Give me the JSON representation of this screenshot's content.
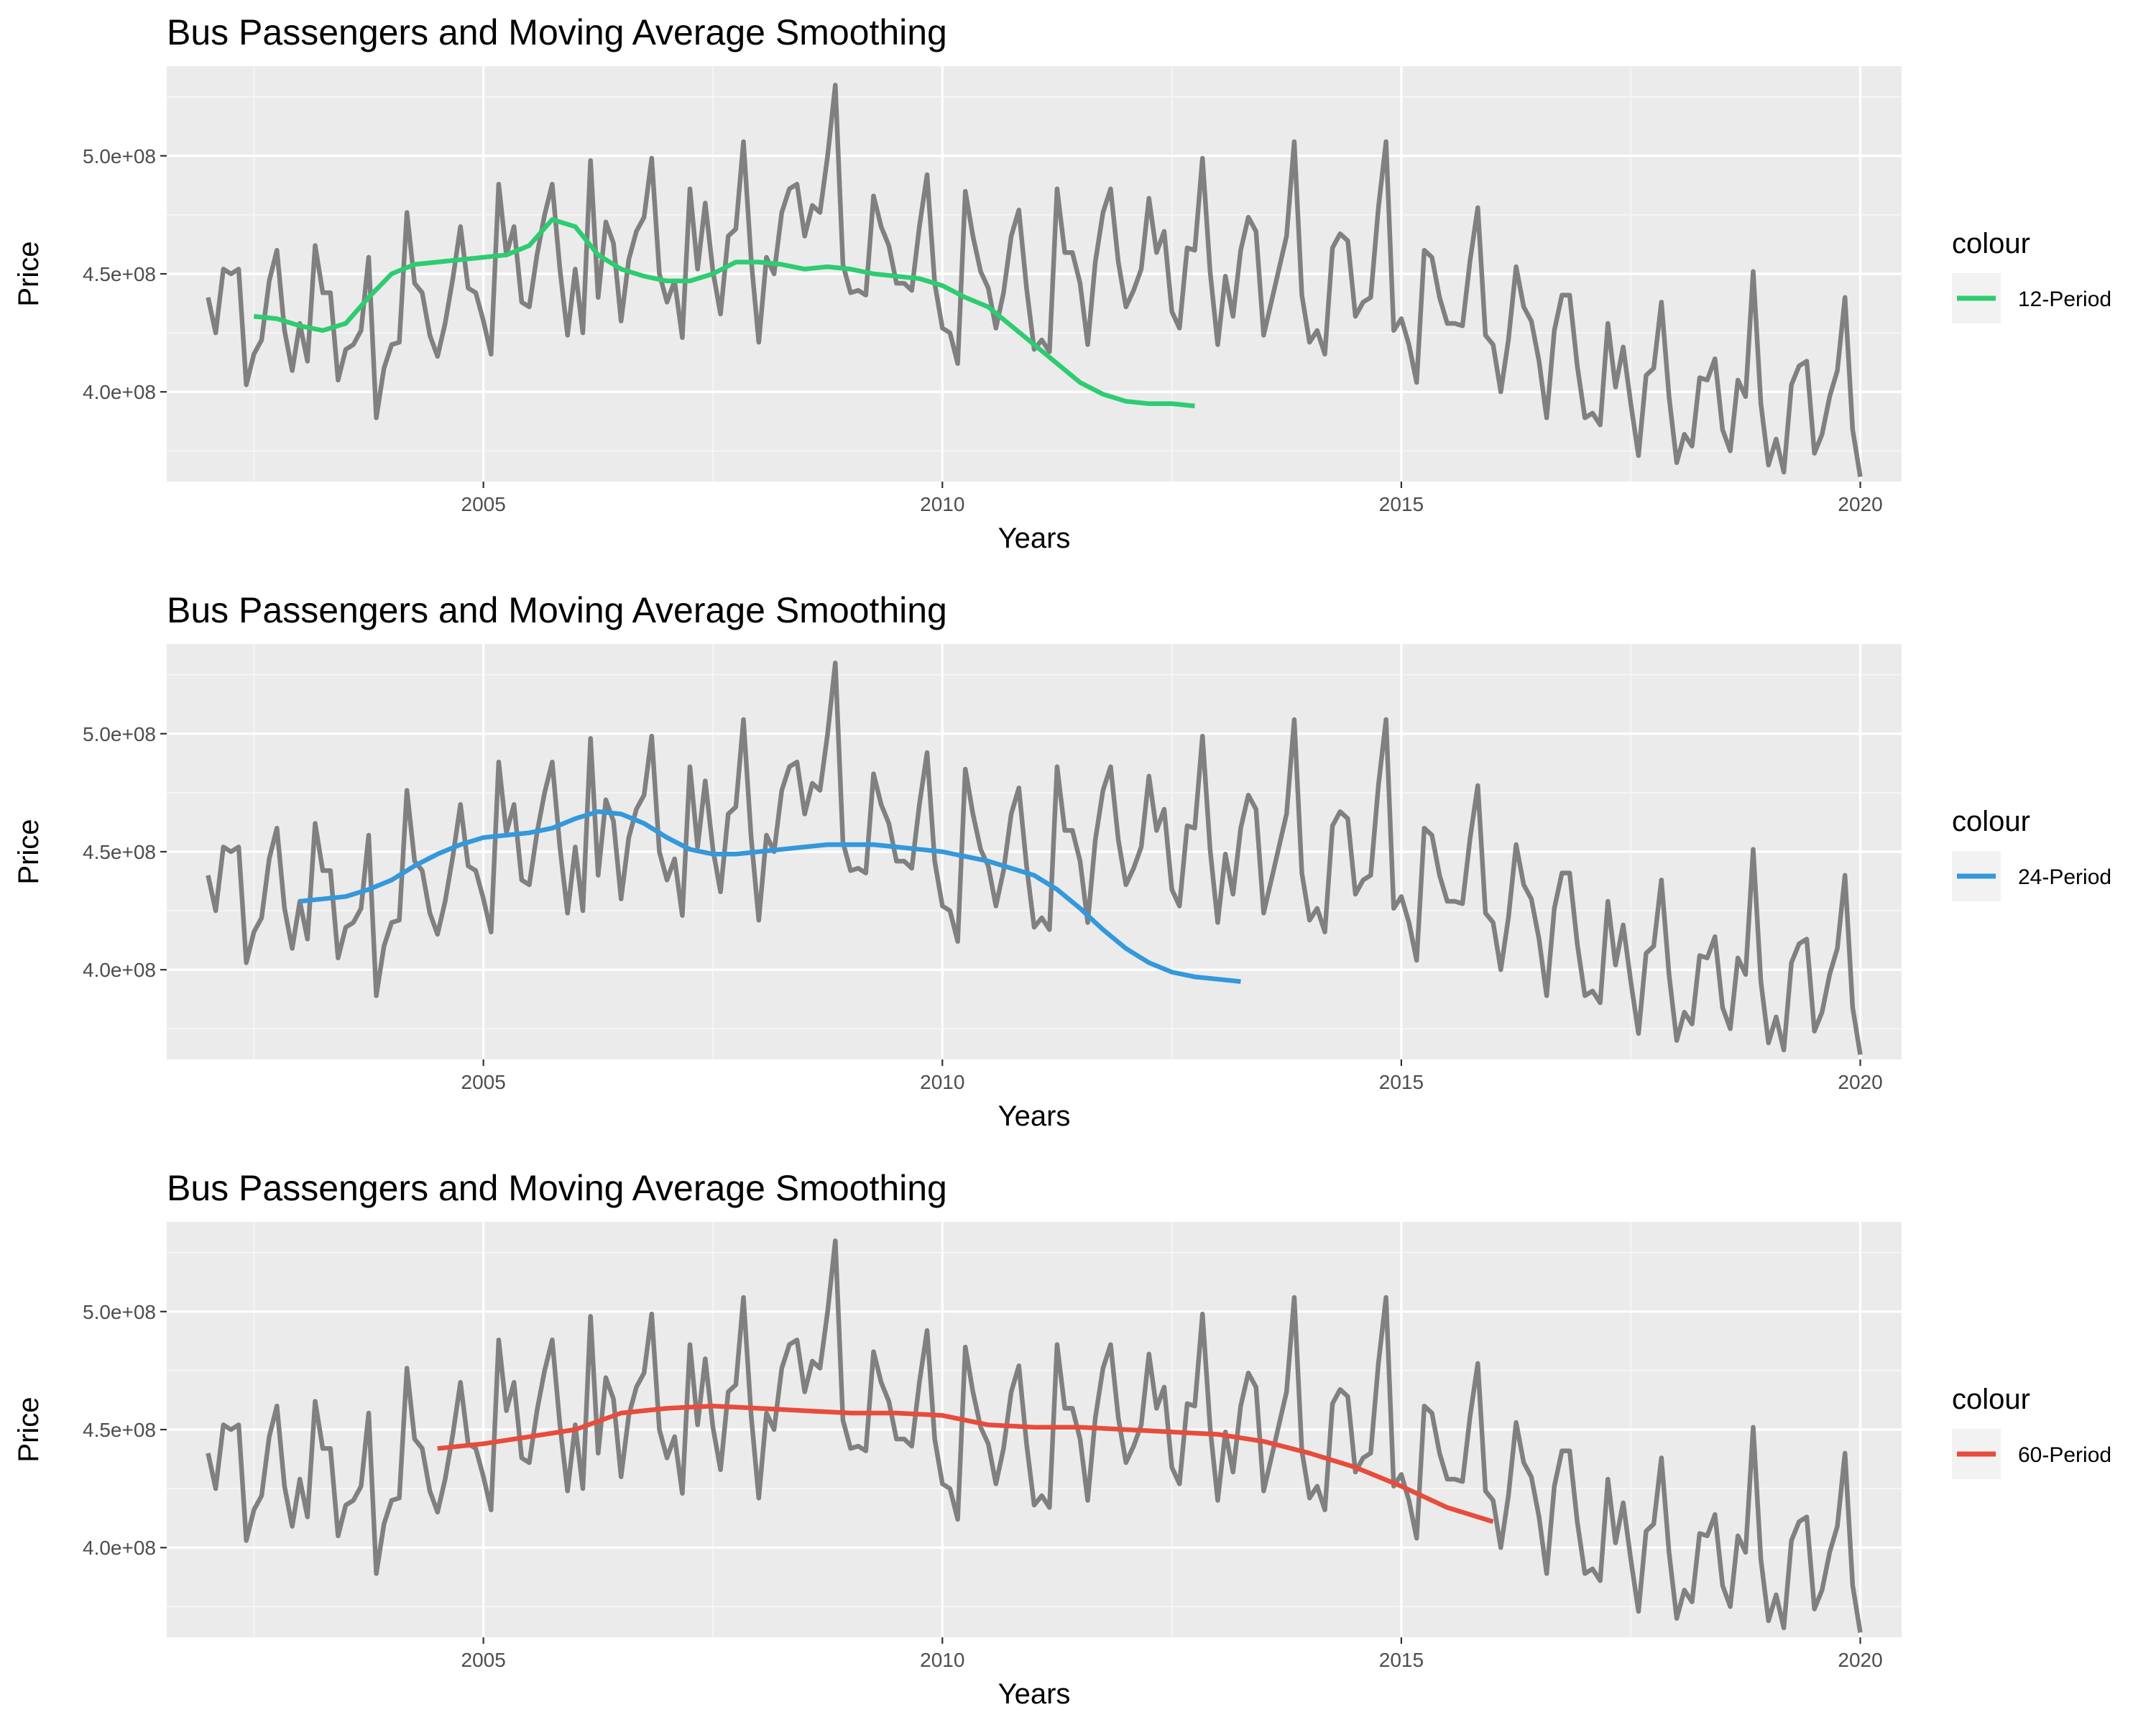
{
  "chart_data": [
    {
      "type": "line",
      "title": "Bus Passengers and Moving Average Smoothing",
      "xlabel": "Years",
      "ylabel": "Price",
      "xlim": [
        2001.55,
        2020.45
      ],
      "ylim": [
        362000000,
        538000000
      ],
      "x_ticks": [
        2005,
        2010,
        2015,
        2020
      ],
      "y_ticks": [
        400000000,
        450000000,
        500000000
      ],
      "x_tick_labels": [
        "2005",
        "2010",
        "2015",
        "2020"
      ],
      "y_tick_labels": [
        "4.0e+08",
        "4.5e+08",
        "5.0e+08"
      ],
      "grid": true,
      "legend": {
        "title": "colour",
        "position": "right",
        "entries": [
          "12-Period"
        ]
      },
      "series": [
        {
          "name": "12-Period",
          "color": "#2ecc71",
          "x_start": 2002.5,
          "step": 0.25,
          "values": [
            432000000,
            431000000,
            428000000,
            426000000,
            429000000,
            440000000,
            450000000,
            454000000,
            455000000,
            456000000,
            457000000,
            458000000,
            462000000,
            473000000,
            470000000,
            458000000,
            452000000,
            449000000,
            447000000,
            447000000,
            450000000,
            455000000,
            455000000,
            454000000,
            452000000,
            453000000,
            452000000,
            450000000,
            449000000,
            448000000,
            445000000,
            440000000,
            436000000,
            428000000,
            420000000,
            412000000,
            404000000,
            399000000,
            396000000,
            395000000,
            395000000,
            394000000
          ]
        }
      ]
    },
    {
      "type": "line",
      "title": "Bus Passengers and Moving Average Smoothing",
      "xlabel": "Years",
      "ylabel": "Price",
      "xlim": [
        2001.55,
        2020.45
      ],
      "ylim": [
        362000000,
        538000000
      ],
      "x_ticks": [
        2005,
        2010,
        2015,
        2020
      ],
      "y_ticks": [
        400000000,
        450000000,
        500000000
      ],
      "x_tick_labels": [
        "2005",
        "2010",
        "2015",
        "2020"
      ],
      "y_tick_labels": [
        "4.0e+08",
        "4.5e+08",
        "5.0e+08"
      ],
      "grid": true,
      "legend": {
        "title": "colour",
        "position": "right",
        "entries": [
          "24-Period"
        ]
      },
      "series": [
        {
          "name": "24-Period",
          "color": "#3498db",
          "x_start": 2003.0,
          "step": 0.25,
          "values": [
            429000000,
            430000000,
            431000000,
            434000000,
            438000000,
            444000000,
            449000000,
            453000000,
            456000000,
            457000000,
            458000000,
            460000000,
            464000000,
            467000000,
            466000000,
            462000000,
            456000000,
            451000000,
            449000000,
            449000000,
            450000000,
            451000000,
            452000000,
            453000000,
            453000000,
            453000000,
            452000000,
            451000000,
            450000000,
            448000000,
            446000000,
            443000000,
            440000000,
            434000000,
            426000000,
            417000000,
            409000000,
            403000000,
            399000000,
            397000000,
            396000000,
            395000000
          ]
        }
      ]
    },
    {
      "type": "line",
      "title": "Bus Passengers and Moving Average Smoothing",
      "xlabel": "Years",
      "ylabel": "Price",
      "xlim": [
        2001.55,
        2020.45
      ],
      "ylim": [
        362000000,
        538000000
      ],
      "x_ticks": [
        2005,
        2010,
        2015,
        2020
      ],
      "y_ticks": [
        400000000,
        450000000,
        500000000
      ],
      "x_tick_labels": [
        "2005",
        "2010",
        "2015",
        "2020"
      ],
      "y_tick_labels": [
        "4.0e+08",
        "4.5e+08",
        "5.0e+08"
      ],
      "grid": true,
      "legend": {
        "title": "colour",
        "position": "right",
        "entries": [
          "60-Period"
        ]
      },
      "series": [
        {
          "name": "60-Period",
          "color": "#e74c3c",
          "x_start": 2004.5,
          "step": 0.5,
          "values": [
            442000000,
            444000000,
            447000000,
            450000000,
            457000000,
            459000000,
            460000000,
            459000000,
            458000000,
            457000000,
            457000000,
            456000000,
            452000000,
            451000000,
            451000000,
            450000000,
            449000000,
            448000000,
            445000000,
            440000000,
            434000000,
            426000000,
            417000000,
            411000000
          ]
        }
      ]
    }
  ],
  "bus_passengers": {
    "name": "Bus Passengers",
    "color": "#808080",
    "x_start": 2002.0,
    "step": 0.0833333,
    "values": [
      440000000,
      425000000,
      452000000,
      450000000,
      452000000,
      403000000,
      416000000,
      422000000,
      447000000,
      460000000,
      426000000,
      409000000,
      429000000,
      413000000,
      462000000,
      442000000,
      442000000,
      405000000,
      418000000,
      420000000,
      426000000,
      457000000,
      389000000,
      410000000,
      420000000,
      421000000,
      476000000,
      446000000,
      442000000,
      424000000,
      415000000,
      429000000,
      448000000,
      470000000,
      444000000,
      442000000,
      430000000,
      416000000,
      488000000,
      458000000,
      470000000,
      438000000,
      436000000,
      458000000,
      475000000,
      488000000,
      452000000,
      424000000,
      452000000,
      425000000,
      498000000,
      440000000,
      472000000,
      463000000,
      430000000,
      456000000,
      468000000,
      474000000,
      499000000,
      450000000,
      438000000,
      447000000,
      423000000,
      486000000,
      452000000,
      480000000,
      451000000,
      433000000,
      466000000,
      469000000,
      506000000,
      456000000,
      421000000,
      457000000,
      450000000,
      476000000,
      486000000,
      488000000,
      466000000,
      479000000,
      476000000,
      500000000,
      530000000,
      454000000,
      442000000,
      443000000,
      441000000,
      483000000,
      470000000,
      462000000,
      446000000,
      446000000,
      443000000,
      470000000,
      492000000,
      446000000,
      427000000,
      425000000,
      412000000,
      485000000,
      466000000,
      451000000,
      444000000,
      427000000,
      442000000,
      466000000,
      477000000,
      444000000,
      418000000,
      422000000,
      417000000,
      486000000,
      459000000,
      459000000,
      446000000,
      420000000,
      455000000,
      476000000,
      486000000,
      455000000,
      436000000,
      443000000,
      452000000,
      482000000,
      459000000,
      468000000,
      434000000,
      427000000,
      461000000,
      460000000,
      499000000,
      451000000,
      420000000,
      449000000,
      432000000,
      460000000,
      474000000,
      468000000,
      424000000,
      438000000,
      452000000,
      466000000,
      506000000,
      441000000,
      421000000,
      426000000,
      416000000,
      461000000,
      467000000,
      464000000,
      432000000,
      438000000,
      440000000,
      478000000,
      506000000,
      426000000,
      431000000,
      420000000,
      404000000,
      460000000,
      457000000,
      440000000,
      429000000,
      429000000,
      428000000,
      456000000,
      478000000,
      424000000,
      420000000,
      400000000,
      422000000,
      453000000,
      436000000,
      430000000,
      413000000,
      389000000,
      426000000,
      441000000,
      441000000,
      411000000,
      389000000,
      391000000,
      386000000,
      429000000,
      402000000,
      419000000,
      395000000,
      373000000,
      407000000,
      410000000,
      438000000,
      398000000,
      370000000,
      382000000,
      377000000,
      406000000,
      405000000,
      414000000,
      384000000,
      375000000,
      405000000,
      398000000,
      451000000,
      395000000,
      369000000,
      380000000,
      366000000,
      403000000,
      411000000,
      413000000,
      374000000,
      382000000,
      398000000,
      409000000,
      440000000,
      384000000,
      364000000
    ]
  }
}
